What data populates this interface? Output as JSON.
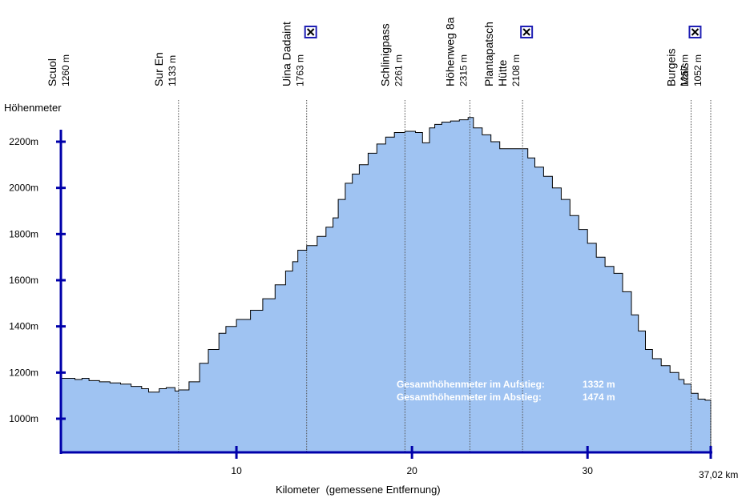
{
  "chart_data": {
    "type": "area",
    "title": "",
    "ylabel": "Höhenmeter",
    "xlabel": "Kilometer",
    "xlabel_note": "(gemessene Entfernung)",
    "xlim": [
      0,
      37.02
    ],
    "ylim": [
      850,
      2300
    ],
    "x_ticks": [
      10,
      20,
      30
    ],
    "x_tick_labels": [
      "10",
      "20",
      "30"
    ],
    "x_end_label": "37,02 km",
    "y_ticks": [
      1000,
      1200,
      1400,
      1600,
      1800,
      2000,
      2200
    ],
    "y_tick_labels": [
      "1000m",
      "1200m",
      "1400m",
      "1600m",
      "1800m",
      "2000m",
      "2200m"
    ],
    "fill_color": "#9fc3f2",
    "axis_color": "#0000aa",
    "profile": {
      "x": [
        0,
        0.8,
        1.2,
        1.6,
        2.2,
        2.8,
        3.4,
        4.0,
        4.6,
        5.0,
        5.6,
        6.0,
        6.5,
        6.7,
        7.3,
        7.9,
        8.4,
        9.0,
        9.4,
        10.0,
        10.8,
        11.5,
        12.2,
        12.8,
        13.2,
        13.5,
        14.0,
        14.6,
        15.1,
        15.5,
        15.8,
        16.2,
        16.6,
        17.0,
        17.5,
        18.0,
        18.5,
        19.0,
        19.6,
        20.2,
        20.6,
        21.0,
        21.3,
        21.7,
        22.2,
        22.7,
        23.2,
        23.5,
        24.0,
        24.5,
        25.0,
        25.5,
        26.3,
        26.6,
        27.0,
        27.5,
        28.0,
        28.5,
        29.0,
        29.5,
        30.0,
        30.5,
        31.0,
        31.5,
        32.0,
        32.5,
        32.9,
        33.3,
        33.7,
        34.2,
        34.7,
        35.2,
        35.5,
        35.9,
        36.3,
        36.7,
        37.02
      ],
      "y": [
        1175,
        1170,
        1175,
        1165,
        1160,
        1155,
        1150,
        1140,
        1130,
        1115,
        1130,
        1135,
        1120,
        1125,
        1160,
        1240,
        1300,
        1370,
        1400,
        1430,
        1470,
        1520,
        1580,
        1640,
        1680,
        1730,
        1750,
        1790,
        1830,
        1870,
        1950,
        2020,
        2060,
        2100,
        2150,
        2190,
        2220,
        2240,
        2245,
        2240,
        2195,
        2260,
        2275,
        2285,
        2290,
        2295,
        2305,
        2260,
        2230,
        2200,
        2170,
        2170,
        2170,
        2130,
        2090,
        2050,
        2000,
        1950,
        1880,
        1820,
        1760,
        1700,
        1660,
        1630,
        1550,
        1450,
        1380,
        1300,
        1260,
        1230,
        1200,
        1170,
        1150,
        1110,
        1085,
        1080,
        1078
      ]
    },
    "waypoints": [
      {
        "name": "Scuol",
        "elev": "1260 m",
        "x": 0,
        "marker": false
      },
      {
        "name": "Sur En",
        "elev": "1133 m",
        "x": 6.7,
        "marker": false
      },
      {
        "name": "Uina Dadaint",
        "elev": "1763 m",
        "x": 14.0,
        "marker": true
      },
      {
        "name": "Schlinigpass",
        "elev": "2261 m",
        "x": 19.6,
        "marker": false
      },
      {
        "name": "Höhenweg 8a",
        "elev": "2315 m",
        "x": 23.3,
        "marker": false
      },
      {
        "name": "Plantapatsch\nHütte",
        "elev": "2108 m",
        "x": 26.3,
        "marker": true
      },
      {
        "name": "Burgeis",
        "elev": "1257 m",
        "x": 35.9,
        "marker": true
      },
      {
        "name": "Mals",
        "elev": "1052 m",
        "x": 37.02,
        "marker": false
      }
    ],
    "annotations": [
      {
        "label": "Gesamthöhenmeter im Aufstieg:",
        "value": "1332 m"
      },
      {
        "label": "Gesamthöhenmeter im Abstieg:",
        "value": "1474 m"
      }
    ]
  }
}
